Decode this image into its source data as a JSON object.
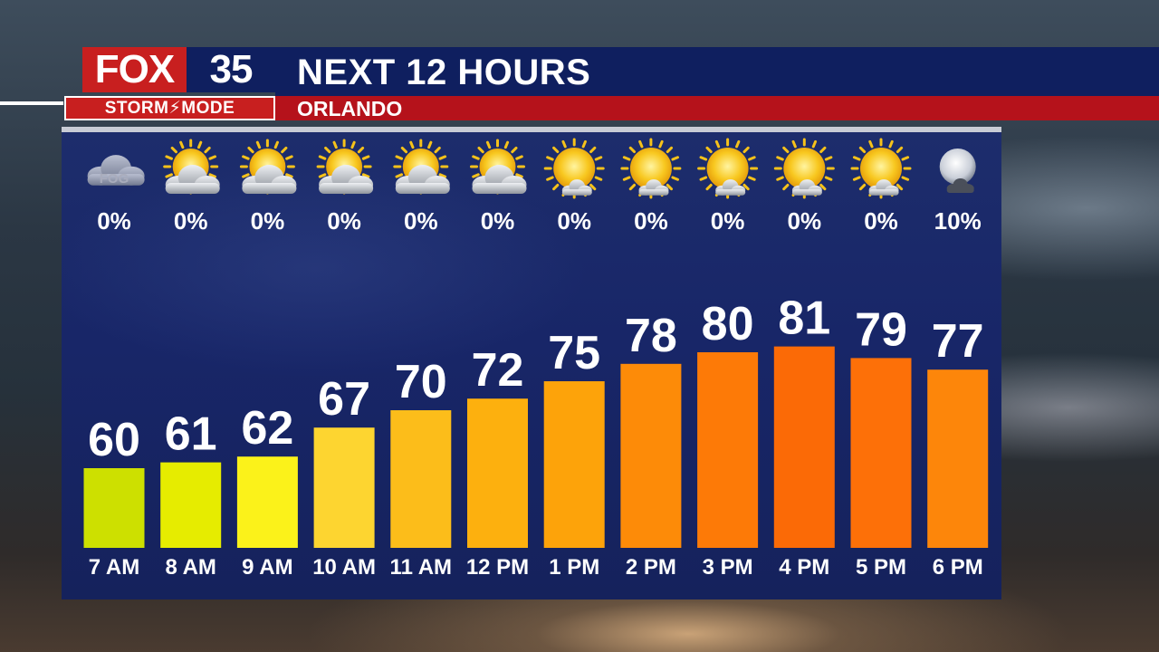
{
  "brand": {
    "logo_main": "FOX",
    "logo_number": "35",
    "logo_sub": "STORM⚡MODE"
  },
  "header": {
    "title": "NEXT 12 HOURS",
    "location": "ORLANDO"
  },
  "chart_data": {
    "type": "bar",
    "categories": [
      "7 AM",
      "8 AM",
      "9 AM",
      "10 AM",
      "11 AM",
      "12 PM",
      "1 PM",
      "2 PM",
      "3 PM",
      "4 PM",
      "5 PM",
      "6 PM"
    ],
    "values": [
      60,
      61,
      62,
      67,
      70,
      72,
      75,
      78,
      80,
      81,
      79,
      77
    ],
    "precip_chance": [
      "0%",
      "0%",
      "0%",
      "0%",
      "0%",
      "0%",
      "0%",
      "0%",
      "0%",
      "0%",
      "0%",
      "10%"
    ],
    "conditions": [
      "fog-icon",
      "partly-cloudy-icon",
      "partly-cloudy-icon",
      "partly-cloudy-icon",
      "partly-cloudy-icon",
      "partly-cloudy-icon",
      "mostly-sunny-icon",
      "mostly-sunny-icon",
      "mostly-sunny-icon",
      "mostly-sunny-icon",
      "mostly-sunny-icon",
      "moon-cloud-icon"
    ],
    "fog_label": "FOG",
    "bar_colors": [
      "#cde000",
      "#e6ec00",
      "#fbf21a",
      "#fdd530",
      "#fcbd1a",
      "#fdb00e",
      "#fda30a",
      "#fd8b08",
      "#fd7a07",
      "#fb6a06",
      "#fd7008",
      "#fd860a"
    ],
    "title": "NEXT 12 HOURS",
    "xlabel": "",
    "ylabel": ""
  }
}
